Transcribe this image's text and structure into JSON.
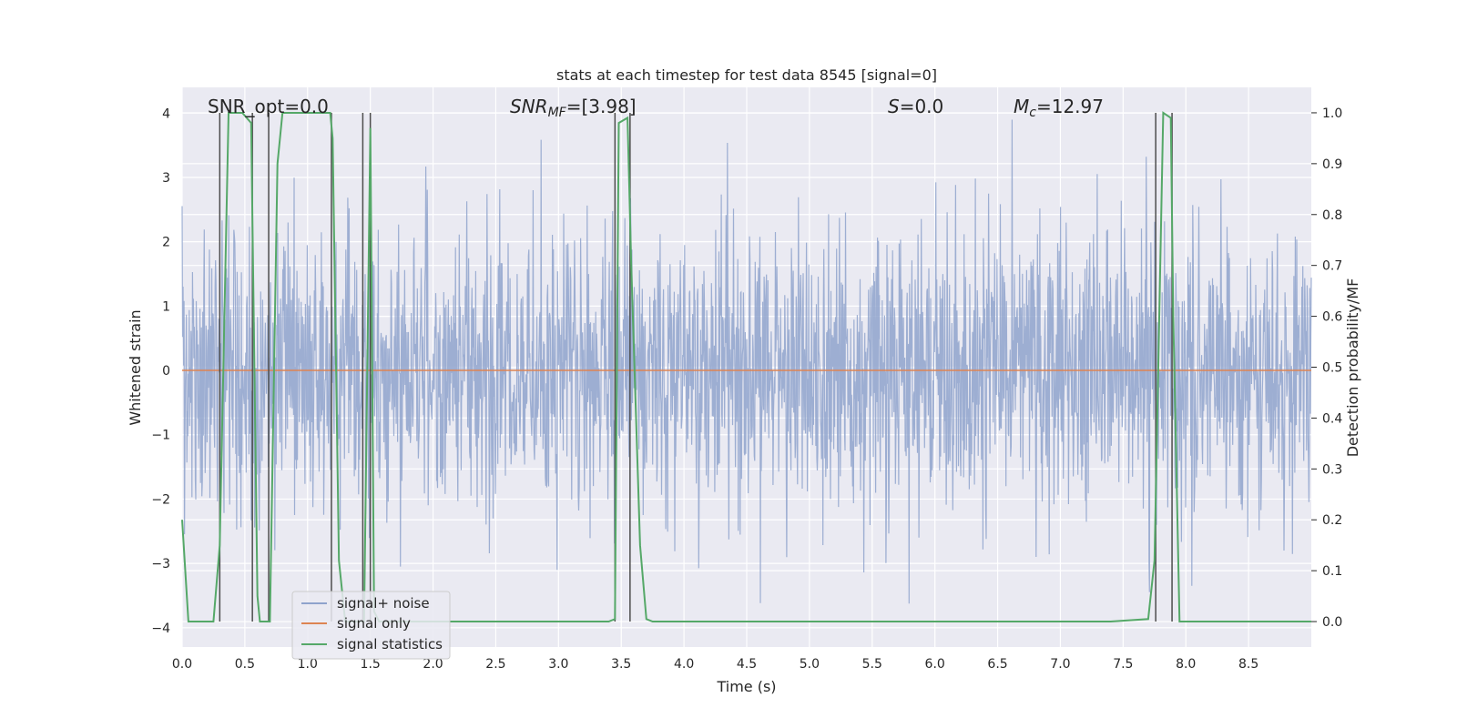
{
  "chart_data": {
    "type": "line",
    "title": "stats at each timestep for test data 8545 [signal=0]",
    "xlabel": "Time (s)",
    "ylabel_left": "Whitened strain",
    "ylabel_right": "Detection probability/MF",
    "xlim": [
      0.0,
      9.0
    ],
    "ylim_left": [
      -4.3,
      4.4
    ],
    "ylim_right": [
      -0.05,
      1.05
    ],
    "xticks": [
      "0.0",
      "0.5",
      "1.0",
      "1.5",
      "2.0",
      "2.5",
      "3.0",
      "3.5",
      "4.0",
      "4.5",
      "5.0",
      "5.5",
      "6.0",
      "6.5",
      "7.0",
      "7.5",
      "8.0",
      "8.5"
    ],
    "yticks_left": [
      "4",
      "3",
      "2",
      "1",
      "0",
      "−1",
      "−2",
      "−3",
      "−4"
    ],
    "yticks_right": [
      "1.0",
      "0.9",
      "0.8",
      "0.7",
      "0.6",
      "0.5",
      "0.4",
      "0.3",
      "0.2",
      "0.1",
      "0.0"
    ],
    "annotations": {
      "snr_opt": "SNR_opt=0.0",
      "snr_mf_main": "SNR",
      "snr_mf_sub": "MF",
      "snr_mf_value": "=[3.98]",
      "s_label": "S",
      "s_value": "=0.0",
      "mc_main": "M",
      "mc_sub": "c",
      "mc_value": "=12.97"
    },
    "legend": [
      "signal+ noise",
      "signal only",
      "signal statistics"
    ],
    "series": [
      {
        "name": "signal+ noise",
        "axis": "left",
        "description_values": "whitened noise, typical amplitude between -2.5 and 3.5",
        "color": "#8fa3cc"
      },
      {
        "name": "signal only",
        "axis": "left",
        "x": [
          0.0,
          9.0
        ],
        "y": [
          0.0,
          0.0
        ],
        "color": "#dd8452"
      },
      {
        "name": "signal statistics",
        "axis": "right",
        "color": "#55a868",
        "x": [
          0.0,
          0.05,
          0.25,
          0.3,
          0.37,
          0.48,
          0.55,
          0.6,
          0.62,
          0.66,
          0.7,
          0.76,
          0.8,
          1.18,
          1.2,
          1.25,
          1.3,
          1.38,
          1.45,
          1.5,
          1.53,
          1.57,
          2.0,
          3.4,
          3.45,
          3.48,
          3.55,
          3.58,
          3.65,
          3.7,
          3.75,
          4.0,
          7.4,
          7.7,
          7.75,
          7.82,
          7.88,
          7.9,
          7.95,
          9.0
        ],
        "y": [
          0.2,
          0.0,
          0.0,
          0.15,
          1.0,
          1.0,
          0.98,
          0.05,
          0.0,
          0.0,
          0.0,
          0.9,
          1.0,
          1.0,
          0.95,
          0.12,
          0.0,
          0.0,
          0.0,
          0.97,
          0.02,
          0.0,
          0.0,
          0.0,
          0.005,
          0.98,
          0.99,
          0.7,
          0.15,
          0.005,
          0.0,
          0.0,
          0.0,
          0.005,
          0.12,
          1.0,
          0.99,
          0.6,
          0.0,
          0.0
        ]
      }
    ],
    "vertical_lines_x": [
      0.3,
      0.56,
      0.69,
      1.19,
      1.44,
      1.5,
      3.45,
      3.57,
      7.76,
      7.89
    ]
  }
}
